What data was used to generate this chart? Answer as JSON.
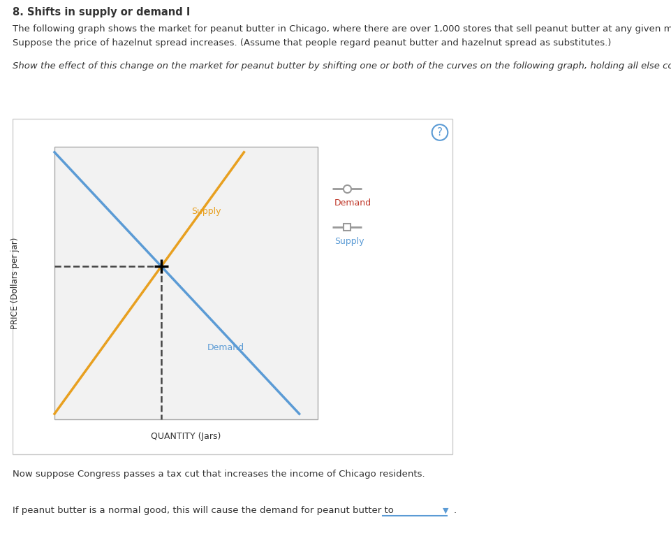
{
  "title": "8. Shifts in supply or demand I",
  "para1_part1": "The following graph shows the ",
  "para1_market": "market",
  "para1_part2": " for peanut butter in ",
  "para1_chicago": "Chicago",
  "para1_part3": ", where there are over 1,000 stores that ",
  "para1_sell": "sell",
  "para1_part4": " peanut butter at any given moment.",
  "para2_part1": "Suppose the price of hazelnut spread increases. (Assume that people regard peanut butter ",
  "para2_part2": "and",
  "para2_part3": " hazelnut spread as substitutes.)",
  "italic_text": "Show the effect of this change on the market for peanut butter by shifting one or both of the curves on the following graph, holding all else constant.",
  "xlabel": "QUANTITY (Jars)",
  "ylabel": "PRICE (Dollars per jar)",
  "demand_color": "#5b9bd5",
  "supply_color": "#e8a020",
  "dashed_color": "#444444",
  "legend_demand_label": "Demand",
  "legend_supply_label": "Supply",
  "legend_line_color": "#999999",
  "footer1": "Now suppose Congress passes a tax cut that increases the ",
  "footer1_income": "income",
  "footer1_of": " of ",
  "footer1_chicago": "Chicago",
  "footer1_rest": " residents.",
  "footer2_part1": "If peanut butter is a normal good, this will cause the demand for peanut butter to",
  "bg_color": "#ffffff",
  "box_border_color": "#cccccc",
  "inner_bg": "#ffffff",
  "text_color_dark": "#333333",
  "text_color_link": "#1a6496",
  "supply_label_color": "#e8a020",
  "demand_label_color": "#5b9bd5",
  "legend_demand_text_color": "#c0392b",
  "legend_supply_text_color": "#5b9bd5",
  "question_circle_color": "#5b9bd5",
  "dropdown_color": "#5b9bd5"
}
